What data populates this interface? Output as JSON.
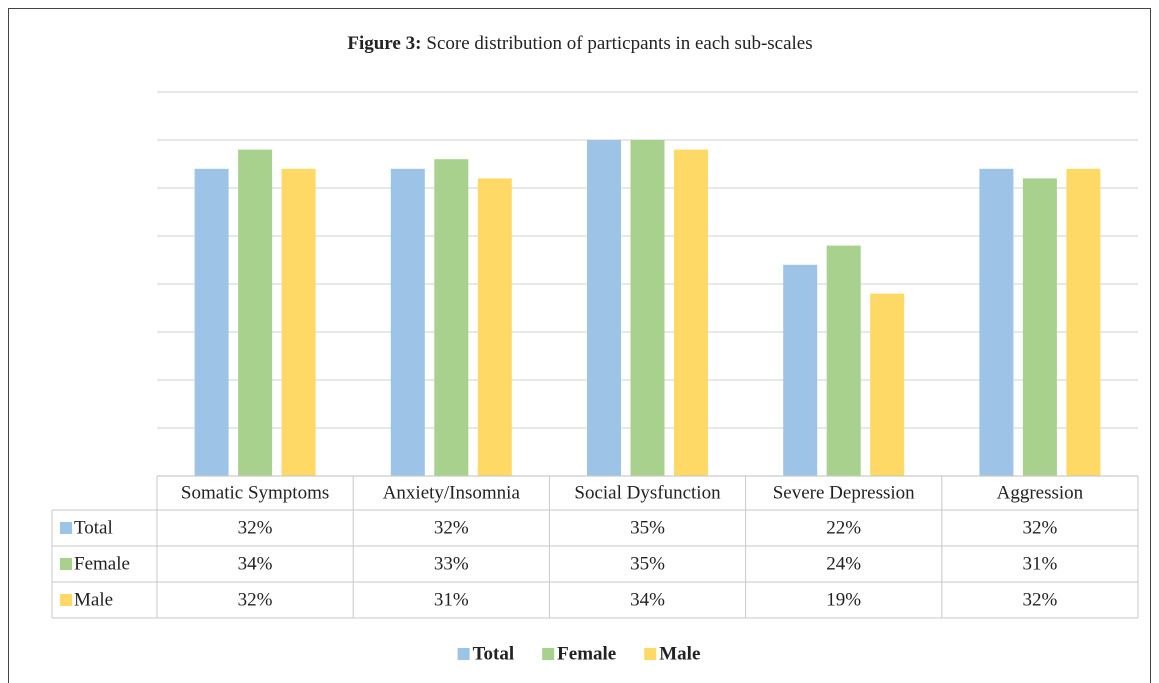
{
  "chart_data": {
    "type": "bar",
    "figure_label": "Figure 3:",
    "title": "Score distribution of particpants in each sub-scales",
    "categories": [
      "Somatic Symptoms",
      "Anxiety/Insomnia",
      "Social Dysfunction",
      "Severe Depression",
      "Aggression"
    ],
    "series": [
      {
        "name": "Total",
        "color": "#9dc3e6",
        "values": [
          32,
          32,
          35,
          22,
          32
        ],
        "value_labels": [
          "32%",
          "32%",
          "35%",
          "22%",
          "32%"
        ]
      },
      {
        "name": "Female",
        "color": "#a9d18e",
        "values": [
          34,
          33,
          35,
          24,
          31
        ],
        "value_labels": [
          "34%",
          "33%",
          "35%",
          "24%",
          "31%"
        ]
      },
      {
        "name": "Male",
        "color": "#ffd966",
        "values": [
          32,
          31,
          34,
          19,
          32
        ],
        "value_labels": [
          "32%",
          "31%",
          "34%",
          "19%",
          "32%"
        ]
      }
    ],
    "ylim": [
      0,
      40
    ],
    "yticks": [
      0,
      5,
      10,
      15,
      20,
      25,
      30,
      35,
      40
    ],
    "grid": true,
    "legend": "bottom"
  }
}
